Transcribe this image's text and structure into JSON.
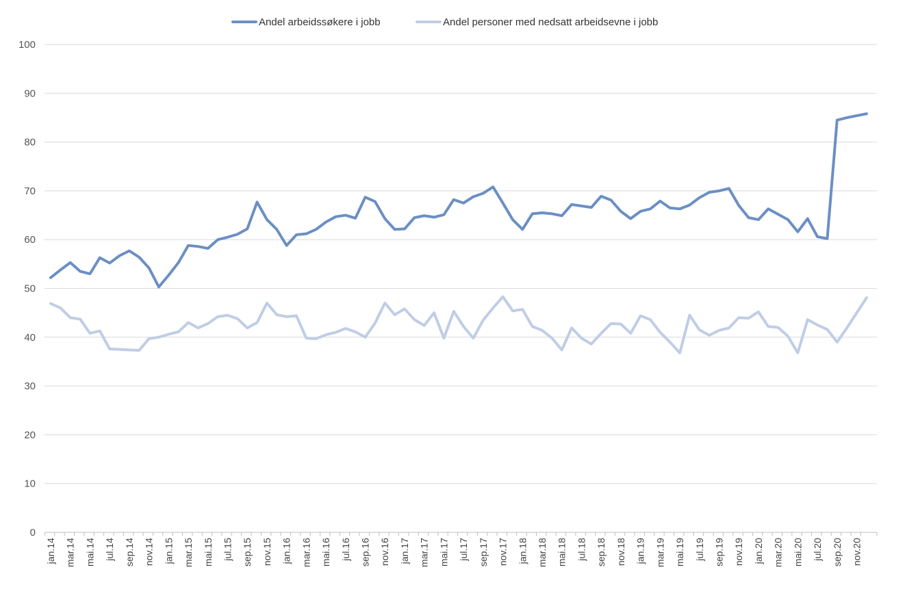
{
  "chart_data": {
    "type": "line",
    "title": "",
    "xlabel": "",
    "ylabel": "",
    "ylim": [
      0,
      100
    ],
    "yticks": [
      0,
      10,
      20,
      30,
      40,
      50,
      60,
      70,
      80,
      90,
      100
    ],
    "grid": "horizontal",
    "legend": "top-center",
    "x": [
      "jan.14",
      "feb.14",
      "mar.14",
      "apr.14",
      "mai.14",
      "jun.14",
      "jul.14",
      "aug.14",
      "sep.14",
      "okt.14",
      "nov.14",
      "des.14",
      "jan.15",
      "feb.15",
      "mar.15",
      "apr.15",
      "mai.15",
      "jun.15",
      "jul.15",
      "aug.15",
      "sep.15",
      "okt.15",
      "nov.15",
      "des.15",
      "jan.16",
      "feb.16",
      "mar.16",
      "apr.16",
      "mai.16",
      "jun.16",
      "jul.16",
      "aug.16",
      "sep.16",
      "okt.16",
      "nov.16",
      "des.16",
      "jan.17",
      "feb.17",
      "mar.17",
      "apr.17",
      "mai.17",
      "jun.17",
      "jul.17",
      "aug.17",
      "sep.17",
      "okt.17",
      "nov.17",
      "des.17",
      "jan.18",
      "feb.18",
      "mar.18",
      "apr.18",
      "mai.18",
      "jun.18",
      "jul.18",
      "aug.18",
      "sep.18",
      "okt.18",
      "nov.18",
      "des.18",
      "jan.19",
      "feb.19",
      "mar.19",
      "apr.19",
      "mai.19",
      "jun.19",
      "jul.19",
      "aug.19",
      "sep.19",
      "okt.19",
      "nov.19",
      "des.19",
      "jan.20",
      "feb.20",
      "mar.20",
      "apr.20",
      "mai.20",
      "jun.20",
      "jul.20",
      "aug.20",
      "sep.20",
      "okt.20",
      "nov.20",
      "des.20"
    ],
    "x_tick_labels": [
      "jan.14",
      "mar.14",
      "mai.14",
      "jul.14",
      "sep.14",
      "nov.14",
      "jan.15",
      "mar.15",
      "mai.15",
      "jul.15",
      "sep.15",
      "nov.15",
      "jan.16",
      "mar.16",
      "mai.16",
      "jul.16",
      "sep.16",
      "nov.16",
      "jan.17",
      "mar.17",
      "mai.17",
      "jul.17",
      "sep.17",
      "nov.17",
      "jan.18",
      "mar.18",
      "mai.18",
      "jul.18",
      "sep.18",
      "nov.18",
      "jan.19",
      "mar.19",
      "mai.19",
      "jul.19",
      "sep.19",
      "nov.19",
      "jan.20",
      "mar.20",
      "mai.20",
      "jul.20",
      "sep.20",
      "nov.20"
    ],
    "series": [
      {
        "name": "Andel arbeidssøkere i jobb",
        "color": "#6b8fc4",
        "values": [
          52.2,
          53.8,
          55.3,
          53.5,
          53.0,
          56.3,
          55.2,
          56.7,
          57.7,
          56.4,
          54.2,
          50.3,
          52.7,
          55.3,
          58.8,
          58.6,
          58.2,
          60.0,
          60.5,
          61.1,
          62.2,
          67.7,
          64.1,
          62.1,
          58.8,
          61.0,
          61.2,
          62.1,
          63.6,
          64.7,
          65.0,
          64.4,
          68.7,
          67.8,
          64.3,
          62.1,
          62.2,
          64.5,
          64.9,
          64.6,
          65.1,
          68.2,
          67.5,
          68.8,
          69.5,
          70.8,
          67.5,
          64.1,
          62.1,
          65.3,
          65.5,
          65.3,
          64.9,
          67.2,
          66.9,
          66.6,
          68.9,
          68.1,
          65.8,
          64.3,
          65.8,
          66.3,
          67.9,
          66.5,
          66.3,
          67.1,
          68.6,
          69.7,
          70.0,
          70.5,
          67.0,
          64.5,
          64.1,
          66.3,
          65.2,
          64.1,
          61.6,
          64.3,
          60.6,
          60.2,
          84.5,
          85.0,
          85.4,
          85.8
        ]
      },
      {
        "name": "Andel personer med nedsatt arbeidsevne i jobb",
        "color": "#c0cde6",
        "values": [
          46.9,
          46.0,
          44.0,
          43.7,
          40.8,
          41.3,
          37.6,
          37.5,
          37.4,
          37.3,
          39.7,
          40.0,
          40.6,
          41.1,
          43.0,
          41.9,
          42.8,
          44.2,
          44.5,
          43.8,
          41.9,
          43.0,
          47.0,
          44.6,
          44.2,
          44.4,
          39.8,
          39.7,
          40.5,
          41.0,
          41.8,
          41.1,
          40.0,
          42.9,
          47.0,
          44.6,
          45.8,
          43.6,
          42.4,
          45.0,
          39.8,
          45.3,
          42.2,
          39.8,
          43.5,
          46.0,
          48.3,
          45.4,
          45.7,
          42.2,
          41.4,
          39.8,
          37.4,
          41.9,
          39.8,
          38.6,
          40.8,
          42.8,
          42.7,
          40.8,
          44.4,
          43.6,
          41.0,
          39.0,
          36.8,
          44.5,
          41.5,
          40.4,
          41.4,
          41.9,
          44.0,
          43.9,
          45.2,
          42.2,
          42.0,
          40.2,
          36.8,
          43.6,
          42.5,
          41.6,
          39.0,
          41.9,
          45.0,
          48.1
        ]
      }
    ]
  }
}
